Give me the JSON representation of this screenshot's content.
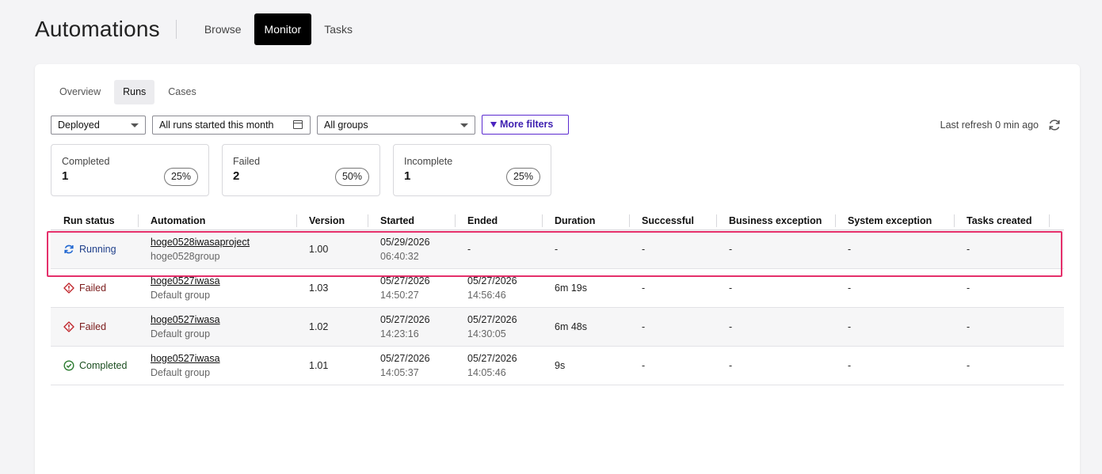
{
  "header": {
    "title": "Automations",
    "tabs": [
      {
        "label": "Browse",
        "active": false
      },
      {
        "label": "Monitor",
        "active": true
      },
      {
        "label": "Tasks",
        "active": false
      }
    ]
  },
  "subtabs": [
    {
      "label": "Overview",
      "active": false
    },
    {
      "label": "Runs",
      "active": true
    },
    {
      "label": "Cases",
      "active": false
    }
  ],
  "filters": {
    "deployment": "Deployed",
    "date_range": "All runs started this month",
    "group": "All groups",
    "more_filters": "More filters",
    "last_refresh": "Last refresh 0 min ago"
  },
  "stats": [
    {
      "label": "Completed",
      "value": "1",
      "percent": "25%"
    },
    {
      "label": "Failed",
      "value": "2",
      "percent": "50%"
    },
    {
      "label": "Incomplete",
      "value": "1",
      "percent": "25%"
    }
  ],
  "table": {
    "columns": [
      "Run status",
      "Automation",
      "Version",
      "Started",
      "Ended",
      "Duration",
      "Successful",
      "Business exception",
      "System exception",
      "Tasks created"
    ],
    "rows": [
      {
        "status": "Running",
        "automation": "hoge0528iwasaproject",
        "group": "hoge0528group",
        "version": "1.00",
        "started_date": "05/29/2026",
        "started_time": "06:40:32",
        "ended_date": "-",
        "ended_time": "",
        "duration": "-",
        "successful": "-",
        "business_exception": "-",
        "system_exception": "-",
        "tasks_created": "-"
      },
      {
        "status": "Failed",
        "automation": "hoge0527iwasa",
        "group": "Default group",
        "version": "1.03",
        "started_date": "05/27/2026",
        "started_time": "14:50:27",
        "ended_date": "05/27/2026",
        "ended_time": "14:56:46",
        "duration": "6m 19s",
        "successful": "-",
        "business_exception": "-",
        "system_exception": "-",
        "tasks_created": "-"
      },
      {
        "status": "Failed",
        "automation": "hoge0527iwasa",
        "group": "Default group",
        "version": "1.02",
        "started_date": "05/27/2026",
        "started_time": "14:23:16",
        "ended_date": "05/27/2026",
        "ended_time": "14:30:05",
        "duration": "6m 48s",
        "successful": "-",
        "business_exception": "-",
        "system_exception": "-",
        "tasks_created": "-"
      },
      {
        "status": "Completed",
        "automation": "hoge0527iwasa",
        "group": "Default group",
        "version": "1.01",
        "started_date": "05/27/2026",
        "started_time": "14:05:37",
        "ended_date": "05/27/2026",
        "ended_time": "14:05:46",
        "duration": "9s",
        "successful": "-",
        "business_exception": "-",
        "system_exception": "-",
        "tasks_created": "-"
      }
    ]
  },
  "icons": {
    "running": "sync-icon",
    "failed": "error-diamond-icon",
    "completed": "check-circle-icon",
    "refresh": "refresh-icon",
    "calendar": "calendar-icon",
    "filter": "funnel-icon"
  },
  "colors": {
    "highlight": "#e5306b",
    "running": "#1f66d1",
    "failed": "#c0272d",
    "completed": "#2e7d32",
    "accent": "#5b2bd0"
  }
}
